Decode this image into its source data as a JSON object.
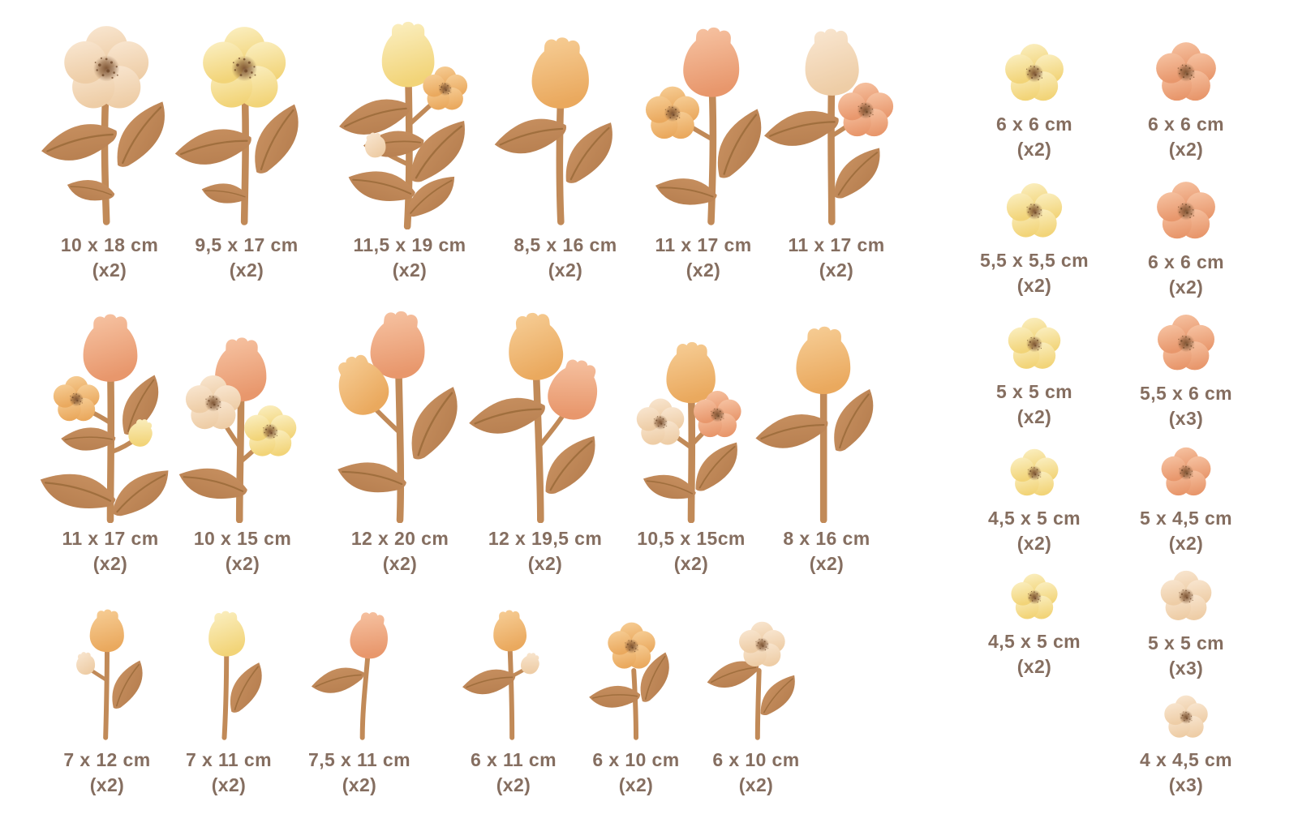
{
  "palette": {
    "background": "#ffffff",
    "label_text": "#856e60",
    "stem_brown": "#c18a58",
    "leaf_light": "#cb9464",
    "leaf_dark": "#b27a4b",
    "leaf_vein_brown": "#a06f3e",
    "flower_center_brown": "#7b5130",
    "speckle_brown": "#6b4425",
    "yellow_light": "#fbf0c4",
    "yellow_dark": "#f2d478",
    "salmon_light": "#f7c5a5",
    "salmon_dark": "#e8976c",
    "cream_light": "#f9e7d2",
    "cream_dark": "#eecda6",
    "orange_light": "#f7cf98",
    "orange_dark": "#eaa95e"
  },
  "rows": [
    {
      "items": [
        {
          "size": "10 x 18 cm",
          "qty": "(x2)"
        },
        {
          "size": "9,5 x 17 cm",
          "qty": "(x2)"
        },
        {
          "size": "11,5 x 19 cm",
          "qty": "(x2)"
        },
        {
          "size": "8,5 x 16 cm",
          "qty": "(x2)"
        },
        {
          "size": "11 x 17 cm",
          "qty": "(x2)"
        },
        {
          "size": "11 x 17 cm",
          "qty": "(x2)"
        }
      ]
    },
    {
      "items": [
        {
          "size": "11 x 17 cm",
          "qty": "(x2)"
        },
        {
          "size": "10 x 15 cm",
          "qty": "(x2)"
        },
        {
          "size": "12 x 20 cm",
          "qty": "(x2)"
        },
        {
          "size": "12 x 19,5 cm",
          "qty": "(x2)"
        },
        {
          "size": "10,5 x 15cm",
          "qty": "(x2)"
        },
        {
          "size": "8 x 16 cm",
          "qty": "(x2)"
        }
      ]
    },
    {
      "items": [
        {
          "size": "7 x 12 cm",
          "qty": "(x2)"
        },
        {
          "size": "7 x 11 cm",
          "qty": "(x2)"
        },
        {
          "size": "7,5 x 11 cm",
          "qty": "(x2)"
        },
        {
          "size": "6 x 11 cm",
          "qty": "(x2)"
        },
        {
          "size": "6 x 10 cm",
          "qty": "(x2)"
        },
        {
          "size": "6 x 10 cm",
          "qty": "(x2)"
        }
      ]
    }
  ],
  "side": {
    "left_column": [
      {
        "size": "6 x 6 cm",
        "qty": "(x2)"
      },
      {
        "size": "5,5 x 5,5 cm",
        "qty": "(x2)"
      },
      {
        "size": "5 x 5 cm",
        "qty": "(x2)"
      },
      {
        "size": "4,5 x 5 cm",
        "qty": "(x2)"
      },
      {
        "size": "4,5 x 5 cm",
        "qty": "(x2)"
      }
    ],
    "right_column": [
      {
        "size": "6 x 6 cm",
        "qty": "(x2)"
      },
      {
        "size": "6 x 6 cm",
        "qty": "(x2)"
      },
      {
        "size": "5,5 x 6 cm",
        "qty": "(x3)"
      },
      {
        "size": "5 x 4,5 cm",
        "qty": "(x2)"
      },
      {
        "size": "5 x 5 cm",
        "qty": "(x3)"
      },
      {
        "size": "4 x 4,5 cm",
        "qty": "(x3)"
      }
    ]
  }
}
